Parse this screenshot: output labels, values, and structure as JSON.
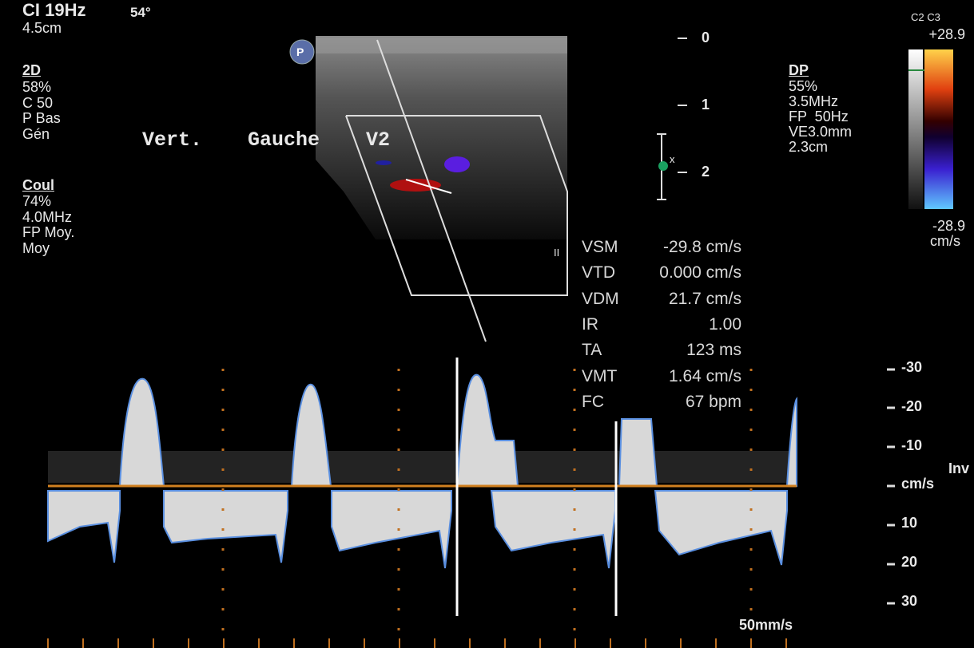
{
  "header": {
    "mode": "CI 19Hz",
    "angle": "54°",
    "depth": "4.5cm",
    "probe": "C2 C3",
    "marker": "P"
  },
  "left_panel": {
    "b_mode": {
      "title": "2D",
      "lines": [
        "58%",
        "C 50",
        "P Bas",
        "Gén"
      ]
    },
    "color": {
      "title": "Coul",
      "lines": [
        "74%",
        "4.0MHz",
        "FP Moy.",
        "Moy"
      ]
    }
  },
  "vessel_label": [
    "Vert.",
    "Gauche",
    "V2"
  ],
  "depth_scale": [
    "0",
    "1",
    "2"
  ],
  "gate_marker": "x",
  "right_panel": {
    "title": "DP",
    "lines": [
      "55%",
      "3.5MHz",
      "FP  50Hz",
      "VE3.0mm",
      "2.3cm"
    ]
  },
  "color_bar": {
    "top": "+28.9",
    "bottom": "-28.9",
    "unit": "cm/s"
  },
  "freeze_marker": "II",
  "measurements": [
    [
      "VSM",
      "-29.8 cm/s"
    ],
    [
      "VTD",
      "0.000 cm/s"
    ],
    [
      "VDM",
      "21.7 cm/s"
    ],
    [
      "IR",
      "1.00"
    ],
    [
      "TA",
      "123 ms"
    ],
    [
      "VMT",
      "1.64 cm/s"
    ],
    [
      "FC",
      "67 bpm"
    ]
  ],
  "spectral_scale": {
    "labels": [
      "-30",
      "-20",
      "-10",
      "cm/s",
      "10",
      "20",
      "30"
    ],
    "invert": "Inv"
  },
  "sweep_speed": "50mm/s"
}
